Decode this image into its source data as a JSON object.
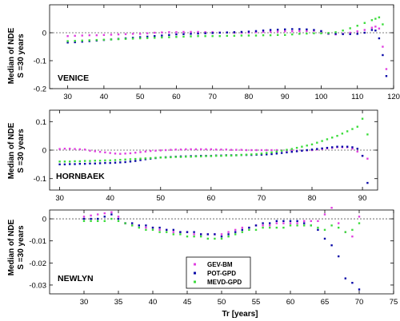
{
  "chart_data": [
    {
      "type": "scatter",
      "station": "VENICE",
      "ylabel_lines": [
        "Median of NDE",
        "S =30 years"
      ],
      "xticks": [
        30,
        40,
        50,
        60,
        70,
        80,
        90,
        100,
        110,
        120
      ],
      "yticks": [
        0,
        -0.1,
        -0.2
      ],
      "ytick_labels": [
        "0",
        "-0.1",
        "-0.2"
      ],
      "xlim": [
        25,
        120
      ],
      "ylim": [
        -0.2,
        0.1
      ],
      "reference_line": 0,
      "series": [
        {
          "name": "GEV-BM",
          "color": "#e040e0",
          "x": [
            30,
            32,
            34,
            36,
            38,
            40,
            42,
            44,
            46,
            48,
            50,
            52,
            54,
            56,
            58,
            60,
            62,
            64,
            66,
            68,
            70,
            72,
            74,
            76,
            78,
            80,
            82,
            84,
            86,
            88,
            90,
            92,
            94,
            96,
            98,
            100,
            102,
            104,
            106,
            108,
            110,
            112,
            114,
            115,
            116,
            117,
            118
          ],
          "y": [
            -0.012,
            -0.011,
            -0.01,
            -0.009,
            -0.009,
            -0.008,
            -0.007,
            -0.006,
            -0.005,
            -0.004,
            -0.004,
            -0.002,
            0,
            0.001,
            0.002,
            0.002,
            0.003,
            0.003,
            0.003,
            0.002,
            0.002,
            0.001,
            0.001,
            0,
            0,
            0,
            0.002,
            0.003,
            0.004,
            0.004,
            0.005,
            0.005,
            0.006,
            0.006,
            0.007,
            0.005,
            -0.004,
            -0.006,
            -0.004,
            0,
            0.005,
            0.01,
            0.018,
            0.022,
            0.015,
            -0.05,
            -0.13
          ]
        },
        {
          "name": "POT-GPD",
          "color": "#0a0aa8",
          "x": [
            30,
            32,
            34,
            36,
            38,
            40,
            42,
            44,
            46,
            48,
            50,
            52,
            54,
            56,
            58,
            60,
            62,
            64,
            66,
            68,
            70,
            72,
            74,
            76,
            78,
            80,
            82,
            84,
            86,
            88,
            90,
            92,
            94,
            96,
            98,
            100,
            102,
            104,
            106,
            108,
            110,
            112,
            114,
            115,
            116,
            117,
            118
          ],
          "y": [
            -0.035,
            -0.034,
            -0.032,
            -0.03,
            -0.028,
            -0.026,
            -0.024,
            -0.022,
            -0.02,
            -0.018,
            -0.016,
            -0.014,
            -0.012,
            -0.01,
            -0.008,
            -0.006,
            -0.005,
            -0.004,
            -0.003,
            -0.002,
            -0.001,
            0,
            0.001,
            0.002,
            0.003,
            0.004,
            0.006,
            0.008,
            0.01,
            0.011,
            0.012,
            0.013,
            0.013,
            0.012,
            0.01,
            0.006,
            -0.003,
            -0.004,
            -0.005,
            -0.005,
            -0.004,
            0,
            0.01,
            0.008,
            -0.02,
            -0.08,
            -0.155
          ]
        },
        {
          "name": "MEVD-GPD",
          "color": "#3cdc3c",
          "x": [
            30,
            32,
            34,
            36,
            38,
            40,
            42,
            44,
            46,
            48,
            50,
            52,
            54,
            56,
            58,
            60,
            62,
            64,
            66,
            68,
            70,
            72,
            74,
            76,
            78,
            80,
            82,
            84,
            86,
            88,
            90,
            92,
            94,
            96,
            98,
            100,
            102,
            104,
            106,
            108,
            110,
            112,
            114,
            115,
            116,
            117
          ],
          "y": [
            -0.03,
            -0.029,
            -0.028,
            -0.027,
            -0.026,
            -0.025,
            -0.024,
            -0.023,
            -0.022,
            -0.021,
            -0.02,
            -0.019,
            -0.018,
            -0.017,
            -0.016,
            -0.015,
            -0.014,
            -0.013,
            -0.012,
            -0.012,
            -0.012,
            -0.012,
            -0.011,
            -0.011,
            -0.01,
            -0.01,
            -0.01,
            -0.009,
            -0.009,
            -0.008,
            -0.008,
            -0.006,
            -0.004,
            -0.003,
            -0.002,
            -0.002,
            -0.001,
            0.002,
            0.008,
            0.016,
            0.025,
            0.035,
            0.045,
            0.05,
            0.055,
            0.03
          ]
        }
      ]
    },
    {
      "type": "scatter",
      "station": "HORNBAEK",
      "ylabel_lines": [
        "Median of NDE",
        "S =30 years"
      ],
      "xticks": [
        30,
        40,
        50,
        60,
        70,
        80,
        90
      ],
      "yticks": [
        0.1,
        0,
        -0.1
      ],
      "ytick_labels": [
        "0.1",
        "0",
        "-0.1"
      ],
      "xlim": [
        28,
        93
      ],
      "ylim": [
        -0.14,
        0.14
      ],
      "reference_line": 0,
      "series": [
        {
          "name": "GEV-BM",
          "color": "#e040e0",
          "x": [
            30,
            31,
            32,
            33,
            34,
            35,
            36,
            37,
            38,
            39,
            40,
            41,
            42,
            43,
            44,
            45,
            46,
            47,
            48,
            49,
            50,
            51,
            52,
            53,
            54,
            55,
            56,
            57,
            58,
            59,
            60,
            61,
            62,
            63,
            64,
            65,
            66,
            67,
            68,
            69,
            70,
            71,
            72,
            73,
            74,
            75,
            76,
            77,
            78,
            79,
            80,
            81,
            82,
            83,
            84,
            85,
            86,
            87,
            88,
            89,
            90,
            91
          ],
          "y": [
            0.004,
            0.005,
            0.005,
            0.004,
            0.003,
            0.002,
            -0.002,
            -0.004,
            -0.006,
            -0.008,
            -0.01,
            -0.012,
            -0.013,
            -0.012,
            -0.011,
            -0.009,
            -0.007,
            -0.005,
            -0.003,
            -0.002,
            -0.001,
            0,
            0.001,
            0.002,
            0.002,
            0.003,
            0.003,
            0.003,
            0.003,
            0.003,
            0.003,
            0.002,
            0.002,
            0.002,
            0.001,
            0.001,
            0.001,
            0,
            0,
            0,
            0,
            0,
            0,
            0,
            -0.001,
            -0.001,
            -0.002,
            -0.002,
            -0.002,
            -0.001,
            0,
            0.002,
            0.004,
            0.006,
            0.008,
            0.01,
            0.01,
            0.01,
            0.005,
            -0.005,
            -0.02,
            -0.03
          ]
        },
        {
          "name": "POT-GPD",
          "color": "#0a0aa8",
          "x": [
            30,
            31,
            32,
            33,
            34,
            35,
            36,
            37,
            38,
            39,
            40,
            41,
            42,
            43,
            44,
            45,
            46,
            47,
            48,
            49,
            50,
            51,
            52,
            53,
            54,
            55,
            56,
            57,
            58,
            59,
            60,
            61,
            62,
            63,
            64,
            65,
            66,
            67,
            68,
            69,
            70,
            71,
            72,
            73,
            74,
            75,
            76,
            77,
            78,
            79,
            80,
            81,
            82,
            83,
            84,
            85,
            86,
            87,
            88,
            89,
            90,
            91
          ],
          "y": [
            -0.05,
            -0.05,
            -0.049,
            -0.049,
            -0.048,
            -0.048,
            -0.047,
            -0.047,
            -0.046,
            -0.045,
            -0.045,
            -0.044,
            -0.043,
            -0.042,
            -0.04,
            -0.038,
            -0.035,
            -0.032,
            -0.03,
            -0.028,
            -0.026,
            -0.025,
            -0.024,
            -0.023,
            -0.022,
            -0.022,
            -0.021,
            -0.021,
            -0.02,
            -0.02,
            -0.02,
            -0.019,
            -0.019,
            -0.018,
            -0.018,
            -0.018,
            -0.017,
            -0.017,
            -0.017,
            -0.016,
            -0.016,
            -0.015,
            -0.014,
            -0.012,
            -0.01,
            -0.008,
            -0.006,
            -0.004,
            -0.002,
            0,
            0.002,
            0.004,
            0.006,
            0.008,
            0.01,
            0.012,
            0.012,
            0.012,
            0.01,
            0.005,
            -0.02,
            -0.115
          ]
        },
        {
          "name": "MEVD-GPD",
          "color": "#3cdc3c",
          "x": [
            30,
            31,
            32,
            33,
            34,
            35,
            36,
            37,
            38,
            39,
            40,
            41,
            42,
            43,
            44,
            45,
            46,
            47,
            48,
            49,
            50,
            51,
            52,
            53,
            54,
            55,
            56,
            57,
            58,
            59,
            60,
            61,
            62,
            63,
            64,
            65,
            66,
            67,
            68,
            69,
            70,
            71,
            72,
            73,
            74,
            75,
            76,
            77,
            78,
            79,
            80,
            81,
            82,
            83,
            84,
            85,
            86,
            87,
            88,
            89,
            90,
            91
          ],
          "y": [
            -0.04,
            -0.04,
            -0.04,
            -0.039,
            -0.039,
            -0.038,
            -0.038,
            -0.037,
            -0.037,
            -0.036,
            -0.036,
            -0.035,
            -0.034,
            -0.033,
            -0.032,
            -0.031,
            -0.03,
            -0.029,
            -0.028,
            -0.027,
            -0.026,
            -0.026,
            -0.025,
            -0.024,
            -0.024,
            -0.023,
            -0.023,
            -0.022,
            -0.022,
            -0.021,
            -0.021,
            -0.02,
            -0.02,
            -0.019,
            -0.019,
            -0.018,
            -0.017,
            -0.016,
            -0.015,
            -0.014,
            -0.012,
            -0.01,
            -0.008,
            -0.005,
            -0.002,
            0.001,
            0.004,
            0.008,
            0.012,
            0.016,
            0.02,
            0.026,
            0.032,
            0.038,
            0.044,
            0.05,
            0.058,
            0.066,
            0.074,
            0.082,
            0.11,
            0.055
          ]
        }
      ]
    },
    {
      "type": "scatter",
      "station": "NEWLYN",
      "ylabel_lines": [
        "Median of NDE",
        "S =30 years"
      ],
      "xlabel": "Tr [years]",
      "xticks": [
        30,
        35,
        40,
        45,
        50,
        55,
        60,
        65,
        70,
        75
      ],
      "yticks": [
        0,
        -0.01,
        -0.02,
        -0.03
      ],
      "ytick_labels": [
        "0",
        "-0.01",
        "-0.02",
        "-0.03"
      ],
      "xlim": [
        25,
        75
      ],
      "ylim": [
        -0.034,
        0.004
      ],
      "reference_line": 0,
      "legend": {
        "position": "lower-center",
        "entries": [
          "GEV-BM",
          "POT-GPD",
          "MEVD-GPD"
        ]
      },
      "series": [
        {
          "name": "GEV-BM",
          "color": "#e040e0",
          "x": [
            30,
            31,
            32,
            33,
            34,
            35,
            36,
            37,
            38,
            39,
            40,
            41,
            42,
            43,
            44,
            45,
            46,
            47,
            48,
            49,
            50,
            51,
            52,
            53,
            54,
            55,
            56,
            57,
            58,
            59,
            60,
            61,
            62,
            63,
            64,
            65,
            66,
            67,
            68,
            69,
            70
          ],
          "y": [
            0.001,
            0.0015,
            0.002,
            0.0025,
            0.003,
            0.001,
            -0.002,
            -0.003,
            -0.003,
            -0.004,
            -0.004,
            -0.005,
            -0.005,
            -0.006,
            -0.006,
            -0.006,
            -0.007,
            -0.007,
            -0.007,
            -0.007,
            -0.007,
            -0.006,
            -0.005,
            -0.004,
            -0.004,
            -0.003,
            -0.003,
            -0.003,
            -0.002,
            -0.002,
            -0.002,
            -0.002,
            -0.001,
            -0.001,
            -0.001,
            0.002,
            0.005,
            -0.002,
            -0.006,
            -0.008,
            0.001
          ]
        },
        {
          "name": "POT-GPD",
          "color": "#0a0aa8",
          "x": [
            30,
            31,
            32,
            33,
            34,
            35,
            36,
            37,
            38,
            39,
            40,
            41,
            42,
            43,
            44,
            45,
            46,
            47,
            48,
            49,
            50,
            51,
            52,
            53,
            54,
            55,
            56,
            57,
            58,
            59,
            60,
            61,
            62,
            63,
            64,
            65,
            66,
            67,
            68,
            69,
            70
          ],
          "y": [
            0,
            0,
            0,
            0.001,
            0.002,
            0,
            -0.002,
            -0.002,
            -0.003,
            -0.003,
            -0.004,
            -0.004,
            -0.005,
            -0.005,
            -0.006,
            -0.006,
            -0.006,
            -0.007,
            -0.007,
            -0.007,
            -0.008,
            -0.007,
            -0.006,
            -0.005,
            -0.004,
            -0.003,
            -0.002,
            -0.002,
            -0.001,
            -0.001,
            -0.001,
            -0.001,
            -0.002,
            -0.003,
            -0.005,
            -0.009,
            -0.012,
            -0.017,
            -0.027,
            -0.029,
            -0.032
          ]
        },
        {
          "name": "MEVD-GPD",
          "color": "#3cdc3c",
          "x": [
            30,
            31,
            32,
            33,
            34,
            35,
            36,
            37,
            38,
            39,
            40,
            41,
            42,
            43,
            44,
            45,
            46,
            47,
            48,
            49,
            50,
            51,
            52,
            53,
            54,
            55,
            56,
            57,
            58,
            59,
            60,
            61,
            62,
            63,
            64,
            65,
            66,
            67,
            68,
            69,
            70
          ],
          "y": [
            -0.001,
            -0.001,
            -0.001,
            -0.001,
            0,
            -0.001,
            -0.002,
            -0.003,
            -0.004,
            -0.005,
            -0.005,
            -0.006,
            -0.006,
            -0.007,
            -0.007,
            -0.008,
            -0.008,
            -0.008,
            -0.009,
            -0.009,
            -0.009,
            -0.008,
            -0.007,
            -0.006,
            -0.005,
            -0.005,
            -0.004,
            -0.004,
            -0.004,
            -0.004,
            -0.003,
            -0.003,
            -0.003,
            -0.003,
            -0.004,
            -0.005,
            -0.003,
            -0.004,
            -0.006,
            -0.005,
            -0.002
          ]
        }
      ]
    }
  ]
}
